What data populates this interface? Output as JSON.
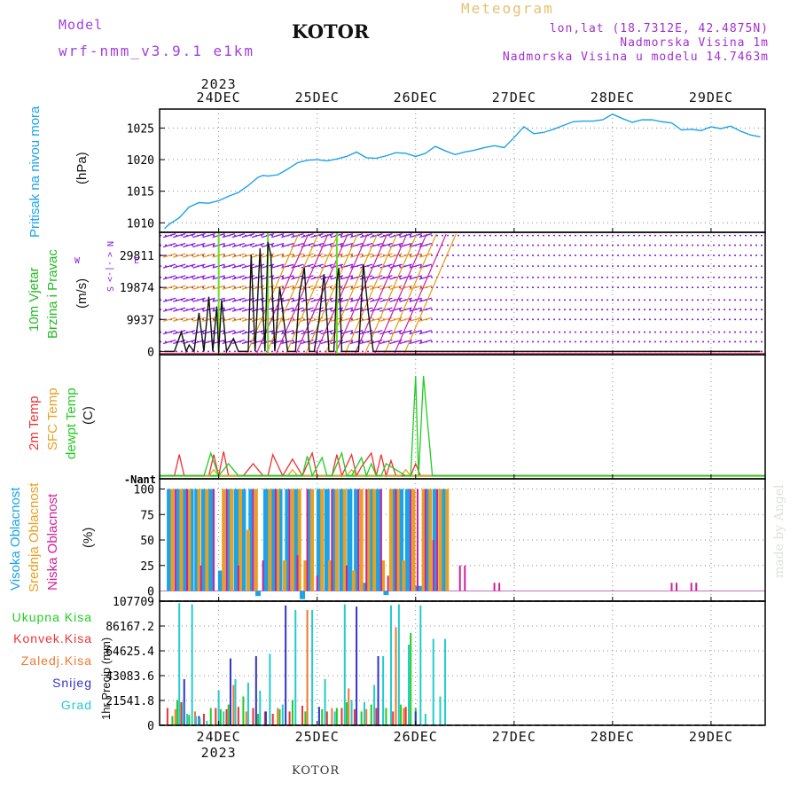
{
  "header": {
    "model_label": "Model",
    "model_name": "wrf-nmm_v3.9.1 e1km",
    "meteogram_label": "Meteogram",
    "station": "KOTOR",
    "lonlat": "lon,lat (18.7312E, 42.4875N)",
    "altitude": "Nadmorska Visina 1m",
    "model_altitude": "Nadmorska Visina u modelu 14.7463m",
    "footer_station": "KOTOR",
    "watermark": "made by Angel"
  },
  "colors": {
    "pressure": "#1aa3e8",
    "wind_label": "#22bb22",
    "wind_barb_purple": "#8a1ee0",
    "wind_orange": "#e89a10",
    "wind_magenta": "#d0209a",
    "wind_speed_line": "#111111",
    "temp2m": "#ee3333",
    "sfc_temp": "#e8a020",
    "dewpt": "#22cc22",
    "high_cloud": "#1aa3e8",
    "mid_cloud": "#e8a020",
    "low_cloud": "#d0209a",
    "total_precip": "#22cc22",
    "convective_precip": "#ee3333",
    "freezing_precip": "#f07830",
    "snow": "#3333cc",
    "hail": "#22cccc",
    "title_purple": "#a040e0",
    "meteogram_gold": "#e8c070",
    "info_purple": "#a030d0"
  },
  "chart_data": [
    {
      "type": "line",
      "panel": "pressure",
      "ylabel_lines": [
        "Pritisak na nivou mora",
        "(hPa)"
      ],
      "top_year": "2023",
      "x_ticks": [
        "24DEC",
        "25DEC",
        "26DEC",
        "27DEC",
        "28DEC",
        "29DEC"
      ],
      "xlim": [
        -0.6,
        5.55
      ],
      "ylim": [
        1008.5,
        1028
      ],
      "y_ticks": [
        1010,
        1015,
        1020,
        1025
      ],
      "x": [
        -0.55,
        -0.5,
        -0.4,
        -0.3,
        -0.2,
        -0.1,
        0.0,
        0.1,
        0.2,
        0.3,
        0.4,
        0.45,
        0.5,
        0.6,
        0.7,
        0.8,
        0.9,
        1.0,
        1.1,
        1.2,
        1.3,
        1.4,
        1.5,
        1.6,
        1.7,
        1.8,
        1.9,
        2.0,
        2.1,
        2.2,
        2.3,
        2.4,
        2.5,
        2.6,
        2.7,
        2.8,
        2.9,
        3.0,
        3.1,
        3.2,
        3.3,
        3.4,
        3.5,
        3.6,
        3.7,
        3.8,
        3.9,
        4.0,
        4.1,
        4.2,
        4.3,
        4.4,
        4.5,
        4.6,
        4.7,
        4.8,
        4.9,
        5.0,
        5.1,
        5.2,
        5.3,
        5.4,
        5.5
      ],
      "values": [
        1009.1,
        1009.8,
        1010.8,
        1012.5,
        1013.2,
        1013.1,
        1013.5,
        1014.2,
        1014.8,
        1015.9,
        1017.2,
        1017.5,
        1017.4,
        1017.6,
        1018.5,
        1019.5,
        1019.9,
        1020.0,
        1019.8,
        1020.1,
        1020.5,
        1021.2,
        1020.3,
        1020.2,
        1020.6,
        1021.1,
        1021.0,
        1020.5,
        1021.0,
        1022.1,
        1021.4,
        1020.8,
        1021.2,
        1021.5,
        1021.9,
        1022.2,
        1021.9,
        1023.5,
        1025.2,
        1024.1,
        1024.3,
        1024.8,
        1025.4,
        1026.0,
        1026.1,
        1026.1,
        1026.3,
        1027.2,
        1026.5,
        1025.9,
        1026.3,
        1026.3,
        1026.0,
        1025.8,
        1024.7,
        1024.8,
        1024.6,
        1025.2,
        1024.9,
        1025.3,
        1024.5,
        1023.9,
        1023.6
      ]
    },
    {
      "type": "line",
      "panel": "wind",
      "ylabel_lines": [
        "10m Vjetar",
        "Brzina i Pravac",
        "(m/s)"
      ],
      "compass_labels": [
        "N",
        "<",
        "-|-",
        ">",
        "W",
        "E",
        "S"
      ],
      "xlim": [
        -0.6,
        5.55
      ],
      "ylim": [
        -1000,
        37000
      ],
      "y_ticks": [
        0,
        9937,
        19874,
        29811
      ],
      "x": [
        -0.55,
        -0.45,
        -0.38,
        -0.33,
        -0.3,
        -0.25,
        -0.2,
        -0.15,
        -0.1,
        -0.06,
        -0.02,
        0.0,
        0.03,
        0.08,
        0.15,
        0.2,
        0.25,
        0.3,
        0.33,
        0.37,
        0.42,
        0.47,
        0.5,
        0.53,
        0.57,
        0.62,
        0.7,
        0.78,
        0.82,
        0.87,
        0.92,
        0.97,
        1.02,
        1.07,
        1.12,
        1.17,
        1.2,
        1.22,
        1.25,
        1.3,
        1.33,
        1.37,
        1.42,
        1.47,
        1.52,
        1.57,
        1.62,
        1.67,
        1.72,
        1.77,
        1.82,
        1.85,
        1.88,
        1.93,
        1.98,
        2.02,
        2.1,
        2.3,
        5.5
      ],
      "values": [
        0,
        0,
        6000,
        0,
        2000,
        0,
        12000,
        0,
        17000,
        0,
        14000,
        0,
        16000,
        0,
        4000,
        0,
        0,
        0,
        30000,
        0,
        32000,
        0,
        34000,
        30000,
        0,
        20000,
        0,
        0,
        18000,
        26000,
        0,
        0,
        10000,
        24000,
        0,
        0,
        22000,
        26000,
        0,
        0,
        0,
        0,
        0,
        27000,
        12000,
        0,
        0,
        0,
        0,
        0,
        0,
        0,
        0,
        0,
        0,
        0,
        0,
        0,
        0
      ],
      "barb_rows": [
        0,
        3000,
        6000,
        9937,
        13000,
        16000,
        19874,
        23000,
        26500,
        29811,
        33000,
        36000
      ],
      "barb_start": -0.5,
      "barb_end": 2.1,
      "barb_step": 0.1
    },
    {
      "type": "line",
      "panel": "temperature",
      "ylabel_lines": [
        "2m Temp",
        "SFC Temp",
        "dewpt Temp",
        "(C)"
      ],
      "y_ticks_garbled": "-Nant",
      "xlim": [
        -0.6,
        5.55
      ],
      "ylim": [
        -10,
        400
      ],
      "series": [
        {
          "name": "2m Temp",
          "x": [
            -0.55,
            -0.45,
            -0.4,
            -0.35,
            -0.1,
            -0.05,
            0.0,
            0.05,
            0.1,
            0.25,
            0.35,
            0.45,
            0.5,
            0.55,
            0.65,
            0.75,
            0.85,
            0.95,
            1.0,
            1.05,
            1.15,
            1.2,
            1.25,
            1.35,
            1.4,
            1.45,
            1.55,
            1.6,
            1.65,
            1.7,
            1.75,
            1.8,
            1.95,
            2.0,
            2.05,
            5.5
          ],
          "values": [
            0,
            0,
            70,
            0,
            0,
            70,
            0,
            80,
            0,
            0,
            40,
            0,
            0,
            70,
            0,
            55,
            0,
            75,
            0,
            0,
            0,
            70,
            0,
            70,
            0,
            30,
            75,
            0,
            70,
            0,
            50,
            0,
            0,
            40,
            0,
            0
          ]
        },
        {
          "name": "SFC Temp",
          "x": [
            -0.55,
            -0.1,
            -0.05,
            0.0,
            0.7,
            0.75,
            0.8,
            1.3,
            1.35,
            1.4,
            1.85,
            1.9,
            1.95,
            5.5
          ],
          "values": [
            0,
            0,
            20,
            0,
            0,
            20,
            0,
            0,
            20,
            0,
            0,
            20,
            0,
            0
          ]
        },
        {
          "name": "dewpt Temp",
          "x": [
            -0.55,
            -0.15,
            -0.08,
            0.0,
            0.1,
            0.2,
            0.85,
            0.9,
            0.95,
            1.05,
            1.1,
            1.15,
            1.25,
            1.3,
            1.35,
            1.45,
            1.5,
            1.55,
            1.6,
            1.65,
            1.7,
            1.9,
            1.95,
            2.0,
            2.03,
            2.08,
            2.12,
            2.17,
            2.2,
            5.5
          ],
          "values": [
            0,
            0,
            75,
            0,
            40,
            0,
            0,
            65,
            0,
            60,
            0,
            0,
            75,
            0,
            0,
            60,
            0,
            40,
            0,
            0,
            40,
            0,
            0,
            330,
            0,
            330,
            180,
            0,
            0,
            0
          ]
        }
      ]
    },
    {
      "type": "bar",
      "panel": "cloud",
      "ylabel_lines": [
        "Visoka Oblacnost",
        "Srednja Oblacnost",
        "Niska Oblacnost",
        "(%)"
      ],
      "xlim": [
        -0.6,
        5.55
      ],
      "ylim": [
        -10,
        110
      ],
      "y_ticks": [
        0,
        25,
        50,
        75,
        100
      ],
      "series": [
        {
          "name": "Visoka Oblacnost",
          "x": [
            -0.5,
            -0.42,
            -0.35,
            -0.28,
            -0.22,
            -0.15,
            -0.08,
            0.02,
            0.1,
            0.18,
            0.25,
            0.33,
            0.4,
            0.48,
            0.55,
            0.62,
            0.7,
            0.78,
            0.85,
            0.92,
            1.02,
            1.1,
            1.18,
            1.25,
            1.33,
            1.4,
            1.48,
            1.55,
            1.62,
            1.7,
            1.78,
            1.85,
            1.92,
            2.0,
            2.05,
            2.12,
            2.2,
            2.28
          ],
          "values": [
            100,
            100,
            100,
            100,
            100,
            100,
            100,
            20,
            100,
            100,
            100,
            100,
            -5,
            100,
            100,
            100,
            100,
            100,
            -8,
            100,
            100,
            100,
            100,
            100,
            100,
            100,
            8,
            100,
            100,
            -4,
            100,
            100,
            100,
            5,
            5,
            100,
            100,
            100
          ]
        },
        {
          "name": "Srednja Oblacnost",
          "x": [
            -0.47,
            -0.38,
            -0.3,
            -0.2,
            -0.12,
            0.05,
            0.13,
            0.22,
            0.3,
            0.38,
            0.52,
            0.6,
            0.67,
            0.75,
            0.82,
            0.88,
            0.95,
            1.05,
            1.13,
            1.2,
            1.28,
            1.37,
            1.45,
            1.52,
            1.58,
            1.67,
            1.75,
            1.82,
            1.88,
            1.98,
            2.08,
            2.15,
            2.25,
            2.32
          ],
          "values": [
            100,
            100,
            100,
            100,
            100,
            100,
            100,
            100,
            60,
            100,
            100,
            100,
            30,
            100,
            100,
            30,
            100,
            100,
            30,
            100,
            100,
            20,
            100,
            100,
            100,
            30,
            100,
            100,
            30,
            100,
            100,
            100,
            100,
            100
          ]
        },
        {
          "name": "Niska Oblacnost",
          "x": [
            -0.44,
            -0.32,
            -0.18,
            -0.05,
            0.08,
            0.2,
            0.35,
            0.45,
            0.58,
            0.72,
            0.8,
            0.9,
            1.0,
            1.15,
            1.3,
            1.42,
            1.5,
            1.65,
            1.72,
            1.8,
            1.95,
            2.02,
            2.1,
            2.18,
            2.22,
            2.45,
            2.5,
            2.8,
            2.85,
            4.6,
            4.65,
            4.8,
            4.85
          ],
          "values": [
            100,
            100,
            25,
            100,
            100,
            25,
            100,
            30,
            100,
            100,
            35,
            100,
            15,
            100,
            25,
            100,
            100,
            100,
            15,
            100,
            100,
            100,
            100,
            50,
            100,
            25,
            25,
            8,
            8,
            8,
            8,
            8,
            8
          ]
        }
      ]
    },
    {
      "type": "bar",
      "panel": "precipitation",
      "ylabel_lines": [
        "1hr Precip (mm)"
      ],
      "legend": [
        "Ukupna Kisa",
        "Konvek.Kisa",
        "Zaledj.Kisa",
        "Snijeg",
        "Grad"
      ],
      "bottom_year": "2023",
      "x_ticks": [
        "24DEC",
        "25DEC",
        "26DEC",
        "27DEC",
        "28DEC",
        "29DEC"
      ],
      "xlim": [
        -0.6,
        5.55
      ],
      "ylim": [
        0,
        107709
      ],
      "y_ticks": [
        0,
        21541.8,
        43083.6,
        64625.4,
        86167.2,
        107709
      ],
      "series": [
        {
          "name": "Ukupna Kisa",
          "x": [
            -0.47,
            -0.42,
            -0.3,
            -0.08,
            0.02,
            0.1,
            0.25,
            0.4,
            0.62,
            0.75,
            0.88,
            1.05,
            1.2,
            1.3,
            1.45,
            1.55,
            1.7,
            1.85,
            1.95,
            2.0
          ],
          "values": [
            8000,
            22000,
            9000,
            15000,
            14000,
            18000,
            25000,
            10000,
            14000,
            22000,
            12000,
            14000,
            15000,
            20000,
            12000,
            18000,
            15000,
            18000,
            80000,
            15000
          ]
        },
        {
          "name": "Konvek.Kisa",
          "x": [
            -0.52,
            -0.38,
            -0.15,
            -0.03,
            0.08,
            0.2,
            0.35,
            0.47,
            0.55,
            0.72,
            0.85,
            1.1,
            1.25,
            1.38,
            1.6,
            1.77,
            1.9
          ],
          "values": [
            15000,
            20000,
            10000,
            15000,
            14000,
            16000,
            15000,
            12000,
            10000,
            12000,
            17000,
            12000,
            15000,
            14000,
            15000,
            12000,
            16000
          ]
        },
        {
          "name": "Zaledj.Kisa",
          "x": [
            -0.44,
            -0.24,
            0.15,
            0.28,
            0.6,
            0.9,
            1.15,
            1.32,
            1.5,
            1.8,
            1.88
          ],
          "values": [
            14000,
            12000,
            35000,
            12000,
            15000,
            100000,
            15000,
            32000,
            14000,
            85000,
            15000
          ]
        },
        {
          "name": "Snijeg",
          "x": [
            -0.35,
            -0.2,
            0.12,
            0.38,
            0.48,
            0.68,
            1.02,
            1.4,
            1.62,
            2.0
          ],
          "values": [
            40000,
            8000,
            58000,
            60000,
            12000,
            104000,
            16000,
            103000,
            60000,
            12000
          ]
        },
        {
          "name": "Grad",
          "x": [
            -0.4,
            -0.36,
            -0.32,
            -0.27,
            -0.23,
            -0.19,
            -0.12,
            0.0,
            0.05,
            0.17,
            0.3,
            0.42,
            0.52,
            0.65,
            0.78,
            0.95,
            1.08,
            1.18,
            1.28,
            1.35,
            1.48,
            1.58,
            1.67,
            1.75,
            1.83,
            1.93,
            2.05,
            2.1,
            2.18,
            2.25,
            2.3
          ],
          "values": [
            106000,
            20000,
            10000,
            105000,
            8000,
            6000,
            4000,
            30000,
            12000,
            40000,
            37000,
            30000,
            62000,
            18000,
            100000,
            100000,
            40000,
            12000,
            105000,
            22000,
            20000,
            35000,
            60000,
            104000,
            105000,
            70000,
            104000,
            10000,
            75000,
            25000,
            75000
          ]
        }
      ]
    }
  ]
}
